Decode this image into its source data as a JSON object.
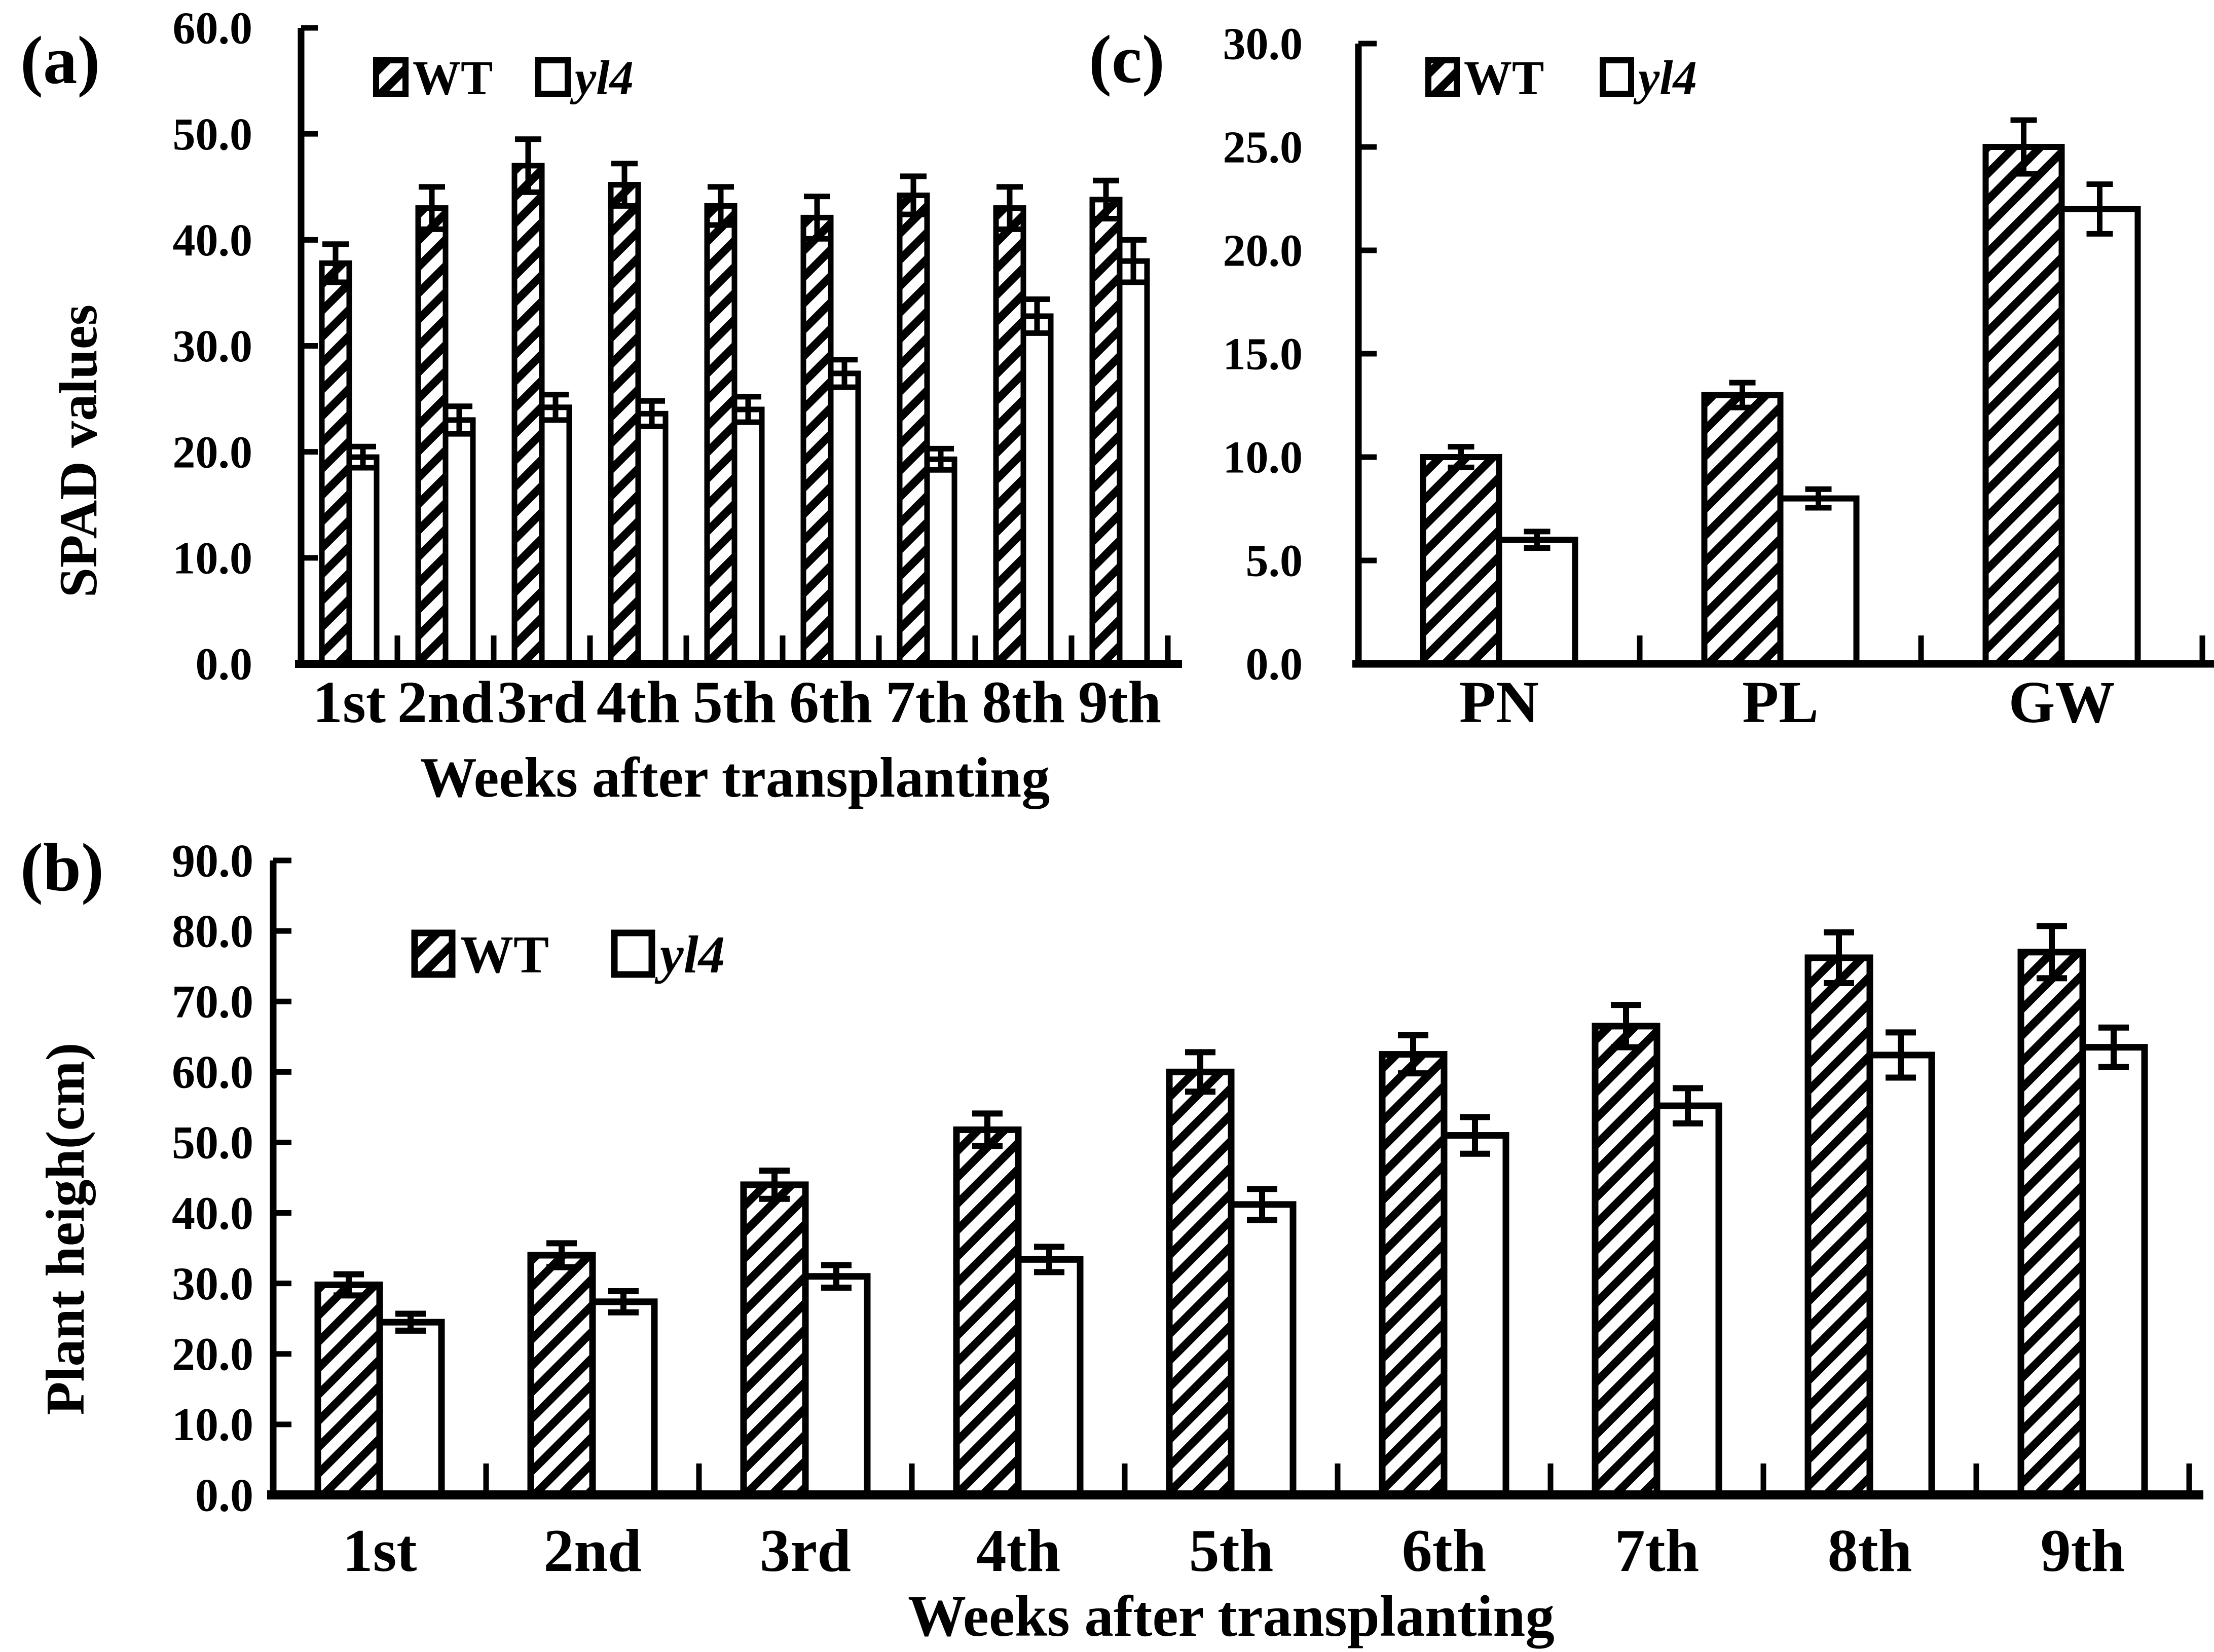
{
  "figure": {
    "background": "#ffffff",
    "ink_color": "#000000",
    "panels": [
      {
        "id": "a",
        "label": "(a)"
      },
      {
        "id": "b",
        "label": "(b)"
      },
      {
        "id": "c",
        "label": "(c)"
      }
    ]
  },
  "chart_data": [
    {
      "id": "a",
      "type": "bar",
      "title": "",
      "xlabel": "Weeks after transplanting",
      "ylabel": "SPAD values",
      "ylim": [
        0,
        60
      ],
      "ytick_step": 10,
      "ytick_format": "one_decimal",
      "grid": false,
      "legend_position": "top-inside-left",
      "categories": [
        "1st",
        "2nd",
        "3rd",
        "4th",
        "5th",
        "6th",
        "7th",
        "8th",
        "9th"
      ],
      "series": [
        {
          "name": "WT",
          "style": "hatched",
          "italic": false,
          "values": [
            37.8,
            43.0,
            47.0,
            45.2,
            43.2,
            42.1,
            44.2,
            43.0,
            43.8
          ],
          "errors": [
            1.8,
            2.0,
            2.5,
            2.0,
            1.8,
            2.0,
            1.8,
            2.0,
            1.8
          ]
        },
        {
          "name": "yl4",
          "style": "open",
          "italic": true,
          "values": [
            19.5,
            23.0,
            24.2,
            23.6,
            24.0,
            27.4,
            19.3,
            32.8,
            38.0
          ],
          "errors": [
            1.0,
            1.3,
            1.2,
            1.2,
            1.2,
            1.3,
            1.0,
            1.6,
            2.0
          ]
        }
      ]
    },
    {
      "id": "b",
      "type": "bar",
      "title": "",
      "xlabel": "Weeks after transplanting",
      "ylabel": "Plant heigh(cm)",
      "ylim": [
        0,
        90
      ],
      "ytick_step": 10,
      "ytick_format": "one_decimal",
      "grid": false,
      "legend_position": "top-inside-left",
      "categories": [
        "1st",
        "2nd",
        "3rd",
        "4th",
        "5th",
        "6th",
        "7th",
        "8th",
        "9th"
      ],
      "series": [
        {
          "name": "WT",
          "style": "hatched",
          "italic": false,
          "values": [
            29.8,
            34.0,
            44.0,
            51.8,
            60.0,
            62.5,
            66.5,
            76.2,
            77.0
          ],
          "errors": [
            1.5,
            1.7,
            2.0,
            2.3,
            2.8,
            2.7,
            3.0,
            3.6,
            3.7
          ]
        },
        {
          "name": "yl4",
          "style": "open",
          "italic": true,
          "values": [
            24.5,
            27.4,
            31.0,
            33.4,
            41.2,
            51.0,
            55.2,
            62.4,
            63.5
          ],
          "errors": [
            1.2,
            1.5,
            1.6,
            1.8,
            2.2,
            2.6,
            2.5,
            3.2,
            2.8
          ]
        }
      ]
    },
    {
      "id": "c",
      "type": "bar",
      "title": "",
      "xlabel": "",
      "ylabel": "",
      "ylim": [
        0,
        30
      ],
      "ytick_step": 5,
      "ytick_format": "one_decimal",
      "grid": false,
      "legend_position": "top-inside-left",
      "categories": [
        "PN",
        "PL",
        "GW"
      ],
      "series": [
        {
          "name": "WT",
          "style": "hatched",
          "italic": false,
          "values": [
            10.0,
            13.0,
            25.0
          ],
          "errors": [
            0.5,
            0.6,
            1.3
          ]
        },
        {
          "name": "yl4",
          "style": "open",
          "italic": true,
          "values": [
            6.0,
            8.0,
            22.0
          ],
          "errors": [
            0.4,
            0.45,
            1.2
          ]
        }
      ]
    }
  ]
}
